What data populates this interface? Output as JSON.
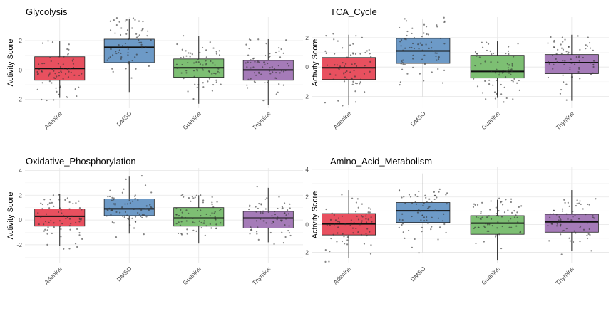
{
  "palette": {
    "Adenine": "#E8505F",
    "DMSO": "#6D9AC7",
    "Guanine": "#7DBF73",
    "Thymine": "#A57BB8"
  },
  "chart_data": [
    {
      "type": "box",
      "title": "Glycolysis",
      "ylabel": "Activity Score",
      "xlabel": "",
      "categories": [
        "Adenine",
        "DMSO",
        "Guanine",
        "Thymine"
      ],
      "yticks": [
        -2,
        0,
        2
      ],
      "ylim": [
        -2.6,
        3.6
      ],
      "grid": true,
      "legend": "none",
      "boxes": [
        {
          "category": "Adenine",
          "whisker_low": -1.9,
          "q1": -0.7,
          "median": 0.1,
          "q3": 0.9,
          "whisker_high": 2.0
        },
        {
          "category": "DMSO",
          "whisker_low": -1.5,
          "q1": 0.5,
          "median": 1.55,
          "q3": 2.1,
          "whisker_high": 3.5
        },
        {
          "category": "Guanine",
          "whisker_low": -2.3,
          "q1": -0.5,
          "median": 0.15,
          "q3": 0.75,
          "whisker_high": 2.3
        },
        {
          "category": "Thymine",
          "whisker_low": -2.4,
          "q1": -0.7,
          "median": 0.0,
          "q3": 0.65,
          "whisker_high": 2.1
        }
      ]
    },
    {
      "type": "box",
      "title": "TCA_Cycle",
      "ylabel": "Activity Score",
      "xlabel": "",
      "categories": [
        "Adenine",
        "DMSO",
        "Guanine",
        "Thymine"
      ],
      "yticks": [
        -2,
        0,
        2
      ],
      "ylim": [
        -2.8,
        3.4
      ],
      "grid": true,
      "legend": "none",
      "boxes": [
        {
          "category": "Adenine",
          "whisker_low": -2.6,
          "q1": -0.85,
          "median": -0.05,
          "q3": 0.65,
          "whisker_high": 2.2
        },
        {
          "category": "DMSO",
          "whisker_low": -2.0,
          "q1": 0.25,
          "median": 1.1,
          "q3": 1.95,
          "whisker_high": 3.3
        },
        {
          "category": "Guanine",
          "whisker_low": -2.1,
          "q1": -0.75,
          "median": -0.3,
          "q3": 0.8,
          "whisker_high": 1.75
        },
        {
          "category": "Thymine",
          "whisker_low": -2.3,
          "q1": -0.45,
          "median": 0.3,
          "q3": 0.85,
          "whisker_high": 2.2
        }
      ]
    },
    {
      "type": "box",
      "title": "Oxidative_Phosphorylation",
      "ylabel": "Activity Score",
      "xlabel": "",
      "categories": [
        "Adenine",
        "DMSO",
        "Guanine",
        "Thymine"
      ],
      "yticks": [
        -2,
        0,
        2,
        4
      ],
      "ylim": [
        -3.5,
        4.2
      ],
      "grid": true,
      "legend": "none",
      "boxes": [
        {
          "category": "Adenine",
          "whisker_low": -2.1,
          "q1": -0.5,
          "median": 0.3,
          "q3": 0.9,
          "whisker_high": 2.1
        },
        {
          "category": "DMSO",
          "whisker_low": -1.1,
          "q1": 0.35,
          "median": 0.9,
          "q3": 1.7,
          "whisker_high": 3.5
        },
        {
          "category": "Guanine",
          "whisker_low": -1.9,
          "q1": -0.5,
          "median": 0.15,
          "q3": 1.0,
          "whisker_high": 2.0
        },
        {
          "category": "Thymine",
          "whisker_low": -1.8,
          "q1": -0.65,
          "median": 0.15,
          "q3": 0.7,
          "whisker_high": 2.6
        }
      ]
    },
    {
      "type": "box",
      "title": "Amino_Acid_Metabolism",
      "ylabel": "Activity Score",
      "xlabel": "",
      "categories": [
        "Adenine",
        "DMSO",
        "Guanine",
        "Thymine"
      ],
      "yticks": [
        -2,
        0,
        2,
        4
      ],
      "ylim": [
        -2.8,
        4.2
      ],
      "grid": true,
      "legend": "none",
      "boxes": [
        {
          "category": "Adenine",
          "whisker_low": -2.4,
          "q1": -0.75,
          "median": 0.05,
          "q3": 0.8,
          "whisker_high": 2.5
        },
        {
          "category": "DMSO",
          "whisker_low": -2.0,
          "q1": 0.15,
          "median": 1.0,
          "q3": 1.6,
          "whisker_high": 3.7
        },
        {
          "category": "Guanine",
          "whisker_low": -2.6,
          "q1": -0.7,
          "median": 0.1,
          "q3": 0.65,
          "whisker_high": 1.8
        },
        {
          "category": "Thymine",
          "whisker_low": -1.9,
          "q1": -0.55,
          "median": 0.2,
          "q3": 0.75,
          "whisker_high": 2.5
        }
      ]
    }
  ]
}
